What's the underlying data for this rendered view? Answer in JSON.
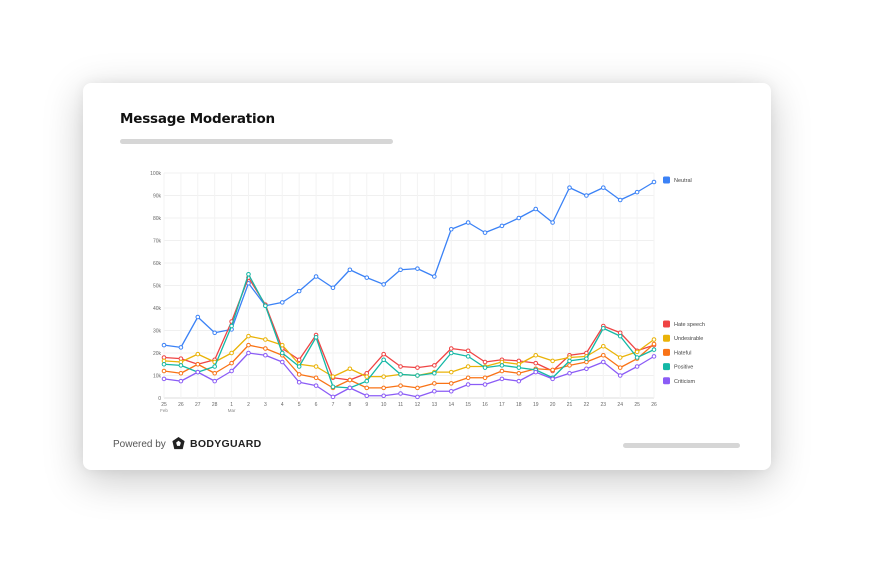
{
  "card": {
    "title": "Message Moderation",
    "powered_by": "Powered by",
    "brand": "BODYGUARD"
  },
  "chart_data": {
    "type": "line",
    "title": "Message Moderation",
    "xlabel": "",
    "ylabel": "",
    "ylim": [
      0,
      100000
    ],
    "grid": true,
    "legend_placement": "right",
    "y_ticks": [
      "0",
      "10k",
      "20k",
      "30k",
      "40k",
      "50k",
      "60k",
      "70k",
      "80k",
      "90k",
      "100k"
    ],
    "categories": [
      "25",
      "26",
      "27",
      "28",
      "1",
      "2",
      "3",
      "4",
      "5",
      "6",
      "7",
      "8",
      "9",
      "10",
      "11",
      "12",
      "13",
      "14",
      "15",
      "16",
      "17",
      "18",
      "19",
      "20",
      "21",
      "22",
      "23",
      "24",
      "25",
      "26"
    ],
    "month_labels": [
      {
        "index": 0,
        "label": "Feb"
      },
      {
        "index": 4,
        "label": "Mar"
      }
    ],
    "series": [
      {
        "name": "Neutral",
        "color": "#3b82f6",
        "values": [
          23500,
          22500,
          36000,
          29000,
          30500,
          51000,
          41000,
          42500,
          47500,
          54000,
          49000,
          57000,
          53500,
          50500,
          57000,
          57500,
          54000,
          75000,
          78000,
          73500,
          76500,
          80000,
          84000,
          78000,
          93500,
          90000,
          93500,
          88000,
          91500,
          96000
        ]
      },
      {
        "name": "Hate speech",
        "color": "#ef4444",
        "values": [
          18000,
          17500,
          15000,
          17000,
          34000,
          53500,
          41500,
          22000,
          17000,
          28000,
          9000,
          8000,
          11000,
          19500,
          14000,
          13500,
          14500,
          22000,
          21000,
          16000,
          17000,
          16500,
          15500,
          12000,
          19000,
          20000,
          32000,
          29000,
          21000,
          23500
        ]
      },
      {
        "name": "Undesirable",
        "color": "#eab308",
        "values": [
          16500,
          16000,
          19500,
          16000,
          20000,
          27500,
          26000,
          23500,
          15000,
          14000,
          9500,
          13000,
          9500,
          9500,
          10500,
          10000,
          11500,
          11500,
          14000,
          14000,
          16000,
          15000,
          19000,
          16500,
          18000,
          18500,
          23000,
          18000,
          20500,
          26000
        ]
      },
      {
        "name": "Hateful",
        "color": "#f97316",
        "values": [
          12000,
          11000,
          15000,
          11000,
          15500,
          23500,
          22000,
          19000,
          10500,
          9000,
          4500,
          8000,
          4500,
          4500,
          5500,
          4500,
          6500,
          6500,
          9000,
          9000,
          12000,
          11000,
          13000,
          12500,
          14500,
          16000,
          19000,
          13500,
          17500,
          24000
        ]
      },
      {
        "name": "Positive",
        "color": "#14b8a6",
        "values": [
          15000,
          14500,
          11500,
          14000,
          32000,
          55000,
          41000,
          20000,
          14000,
          27000,
          5000,
          4500,
          7500,
          17000,
          10500,
          10000,
          11000,
          20000,
          18500,
          13500,
          14500,
          13500,
          12500,
          9000,
          16500,
          17500,
          31000,
          27500,
          18000,
          21500
        ]
      },
      {
        "name": "Criticism",
        "color": "#8b5cf6",
        "values": [
          8500,
          7500,
          11500,
          7500,
          12000,
          20000,
          19000,
          16000,
          7000,
          5500,
          500,
          4500,
          1000,
          1000,
          2000,
          500,
          3000,
          3000,
          6000,
          6000,
          8500,
          7500,
          11500,
          8500,
          11000,
          13000,
          16000,
          10000,
          14000,
          18500
        ]
      }
    ]
  }
}
